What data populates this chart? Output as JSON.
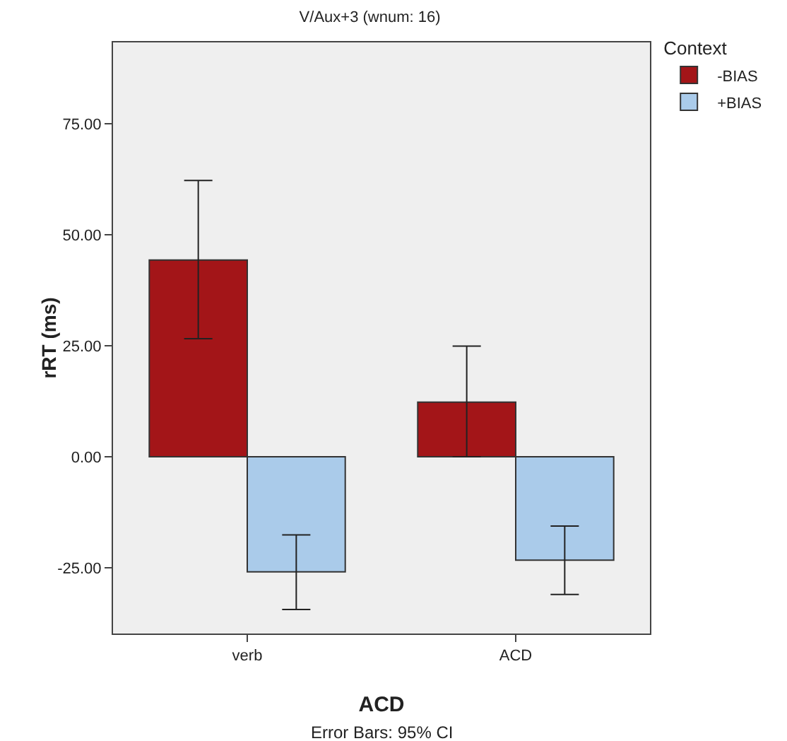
{
  "chart_data": {
    "type": "bar",
    "title": "V/Aux+3 (wnum: 16)",
    "xlabel": "ACD",
    "ylabel": "rRT (ms)",
    "legend_title": "Context",
    "categories": [
      "verb",
      "ACD"
    ],
    "series": [
      {
        "name": "-BIAS",
        "color": "#a31518",
        "values": [
          44.3,
          12.3
        ],
        "errors": [
          [
            26.6,
            62.2
          ],
          [
            0,
            24.9
          ]
        ]
      },
      {
        "name": "+BIAS",
        "color": "#aacbea",
        "values": [
          -25.9,
          -23.3
        ],
        "errors": [
          [
            -34.4,
            -17.6
          ],
          [
            -31,
            -15.6
          ]
        ]
      }
    ],
    "ylim": [
      -39.8,
      93.3
    ],
    "yticks": [
      {
        "value": -25,
        "label": "-25.00"
      },
      {
        "value": 0,
        "label": "0.00"
      },
      {
        "value": 25,
        "label": "25.00"
      },
      {
        "value": 50,
        "label": "50.00"
      },
      {
        "value": 75,
        "label": "75.00"
      }
    ],
    "grid": false,
    "legend": "top right",
    "annotations": [
      "Error Bars: 95% CI"
    ]
  }
}
